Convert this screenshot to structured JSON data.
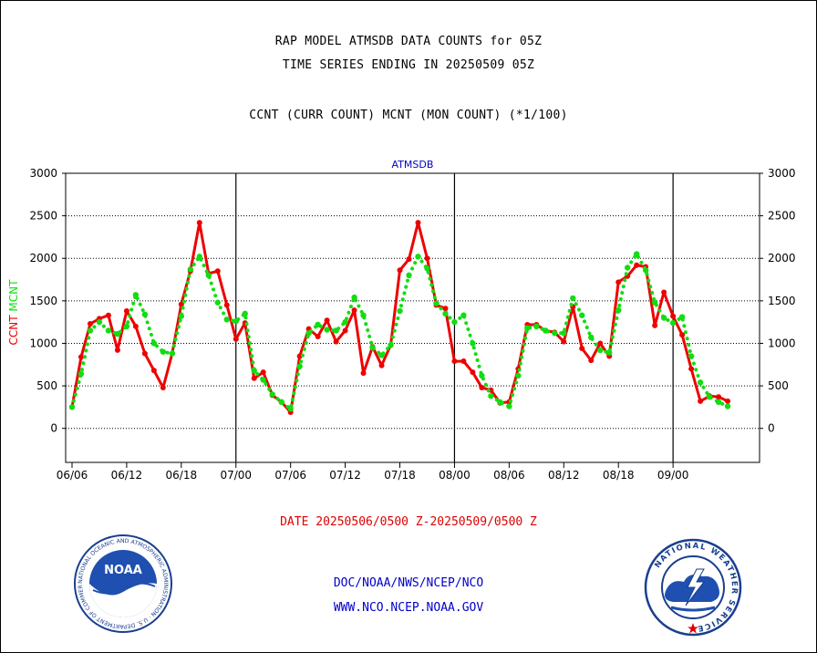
{
  "titles": {
    "line1": "RAP MODEL ATMSDB DATA COUNTS for 05Z",
    "line2": "TIME SERIES ENDING IN 20250509 05Z",
    "line3": "CCNT (CURR COUNT) MCNT (MON COUNT) (*1/100)"
  },
  "date_range": "DATE 20250506/0500 Z-20250509/0500 Z",
  "footer": {
    "org": "DOC/NOAA/NWS/NCEP/NCO",
    "url": "WWW.NCO.NCEP.NOAA.GOV"
  },
  "logos": {
    "left": {
      "name": "NOAA",
      "ring_text": "NATIONAL OCEANIC AND ATMOSPHERIC ADMINISTRATION · U.S. DEPARTMENT OF COMMERCE"
    },
    "right": {
      "ring_text": "NATIONAL WEATHER SERVICE"
    }
  },
  "colors": {
    "ccnt": "#ee0000",
    "mcnt": "#11dd11",
    "panel_label": "#0000cc",
    "date_range": "#dd0000",
    "footer": "#0000cc"
  },
  "chart_data": {
    "type": "line",
    "title": "ATMSDB",
    "ylabel_left": [
      "CCNT",
      "MCNT"
    ],
    "ylim": [
      -400,
      3000
    ],
    "yticks": [
      0,
      500,
      1000,
      1500,
      2000,
      2500,
      3000
    ],
    "xlim": [
      -0.7,
      75.5
    ],
    "xticks": [
      {
        "x": 0,
        "label": "06/06"
      },
      {
        "x": 6,
        "label": "06/12"
      },
      {
        "x": 12,
        "label": "06/18"
      },
      {
        "x": 18,
        "label": "07/00"
      },
      {
        "x": 24,
        "label": "07/06"
      },
      {
        "x": 30,
        "label": "07/12"
      },
      {
        "x": 36,
        "label": "07/18"
      },
      {
        "x": 42,
        "label": "08/00"
      },
      {
        "x": 48,
        "label": "08/06"
      },
      {
        "x": 54,
        "label": "08/12"
      },
      {
        "x": 60,
        "label": "08/18"
      },
      {
        "x": 66,
        "label": "09/00"
      }
    ],
    "day_boundaries": [
      18,
      42,
      66
    ],
    "grid": true,
    "series": [
      {
        "name": "CCNT",
        "style": "solid",
        "values": [
          250,
          840,
          1230,
          1290,
          1330,
          920,
          1380,
          1200,
          880,
          680,
          480,
          880,
          1460,
          1850,
          2420,
          1820,
          1850,
          1450,
          1050,
          1240,
          590,
          660,
          390,
          310,
          190,
          850,
          1170,
          1080,
          1270,
          1020,
          1150,
          1390,
          650,
          960,
          740,
          980,
          1860,
          1990,
          2420,
          2000,
          1450,
          1410,
          790,
          790,
          660,
          480,
          450,
          300,
          310,
          700,
          1220,
          1220,
          1150,
          1130,
          1020,
          1430,
          940,
          800,
          1000,
          850,
          1720,
          1790,
          1920,
          1900,
          1210,
          1600,
          1320,
          1100,
          700,
          320,
          380,
          370,
          320
        ]
      },
      {
        "name": "MCNT",
        "style": "dotted",
        "values": [
          250,
          640,
          1150,
          1250,
          1150,
          1110,
          1200,
          1570,
          1340,
          1000,
          900,
          880,
          1320,
          1870,
          2020,
          1800,
          1480,
          1280,
          1260,
          1350,
          680,
          570,
          400,
          310,
          230,
          730,
          1120,
          1220,
          1160,
          1150,
          1250,
          1540,
          1330,
          950,
          860,
          980,
          1380,
          1800,
          2020,
          1880,
          1470,
          1350,
          1250,
          1330,
          1000,
          620,
          380,
          310,
          260,
          620,
          1180,
          1200,
          1150,
          1120,
          1120,
          1530,
          1330,
          1070,
          920,
          890,
          1390,
          1890,
          2050,
          1860,
          1480,
          1300,
          1240,
          1310,
          850,
          540,
          370,
          310,
          260
        ]
      }
    ]
  }
}
